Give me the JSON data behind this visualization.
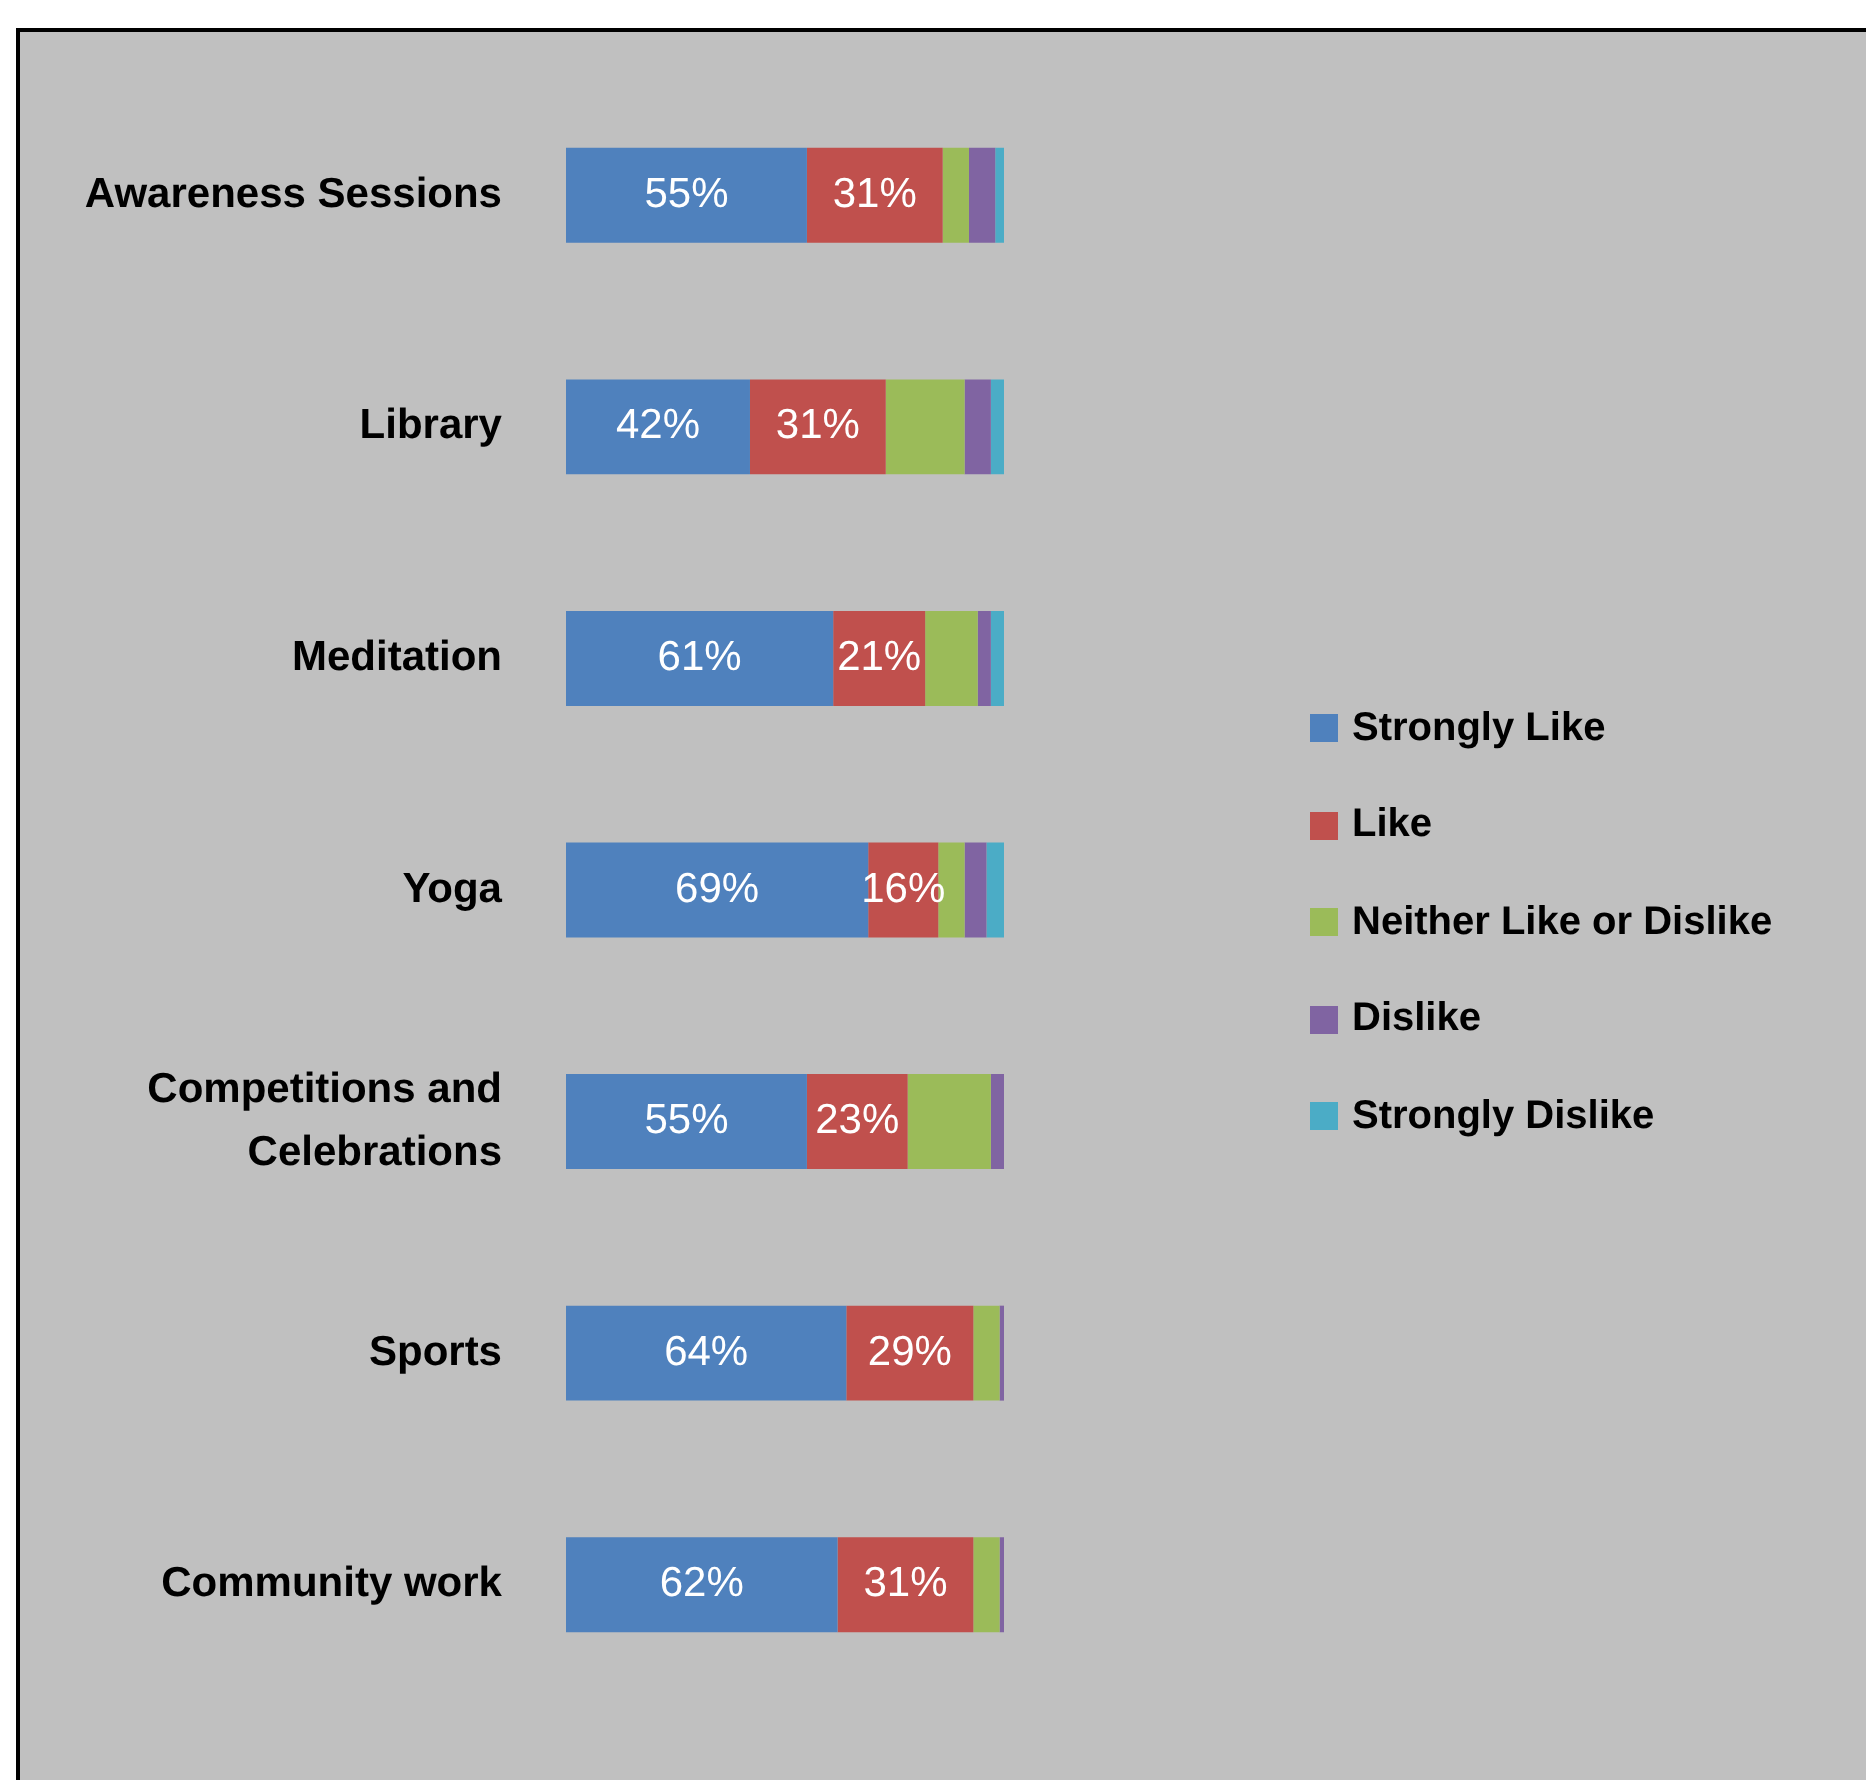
{
  "chart_data": {
    "type": "bar",
    "orientation": "horizontal",
    "stacked": true,
    "categories": [
      "Awareness Sessions",
      "Library",
      "Meditation",
      "Yoga",
      "Competitions and Celebrations",
      "Sports",
      "Community work"
    ],
    "series": [
      {
        "name": "Strongly Like",
        "color": "#4f81bd",
        "values": [
          55,
          42,
          61,
          69,
          55,
          64,
          62
        ],
        "value_labels": [
          "55%",
          "42%",
          "61%",
          "69%",
          "55%",
          "64%",
          "62%"
        ]
      },
      {
        "name": "Like",
        "color": "#c0504d",
        "values": [
          31,
          31,
          21,
          16,
          23,
          29,
          31
        ],
        "value_labels": [
          "31%",
          "31%",
          "21%",
          "16%",
          "23%",
          "29%",
          "31%"
        ]
      },
      {
        "name": "Neither Like or Dislike",
        "color": "#9bbb59",
        "values": [
          6,
          18,
          12,
          6,
          19,
          6,
          6
        ]
      },
      {
        "name": "Dislike",
        "color": "#8064a2",
        "values": [
          6,
          6,
          3,
          5,
          3,
          1,
          1
        ]
      },
      {
        "name": "Strongly Dislike",
        "color": "#4bacc6",
        "values": [
          2,
          3,
          3,
          4,
          0,
          0,
          0
        ]
      }
    ],
    "xlim": [
      0,
      100
    ],
    "tick_labels": "y",
    "grid": false,
    "legend": "right"
  }
}
